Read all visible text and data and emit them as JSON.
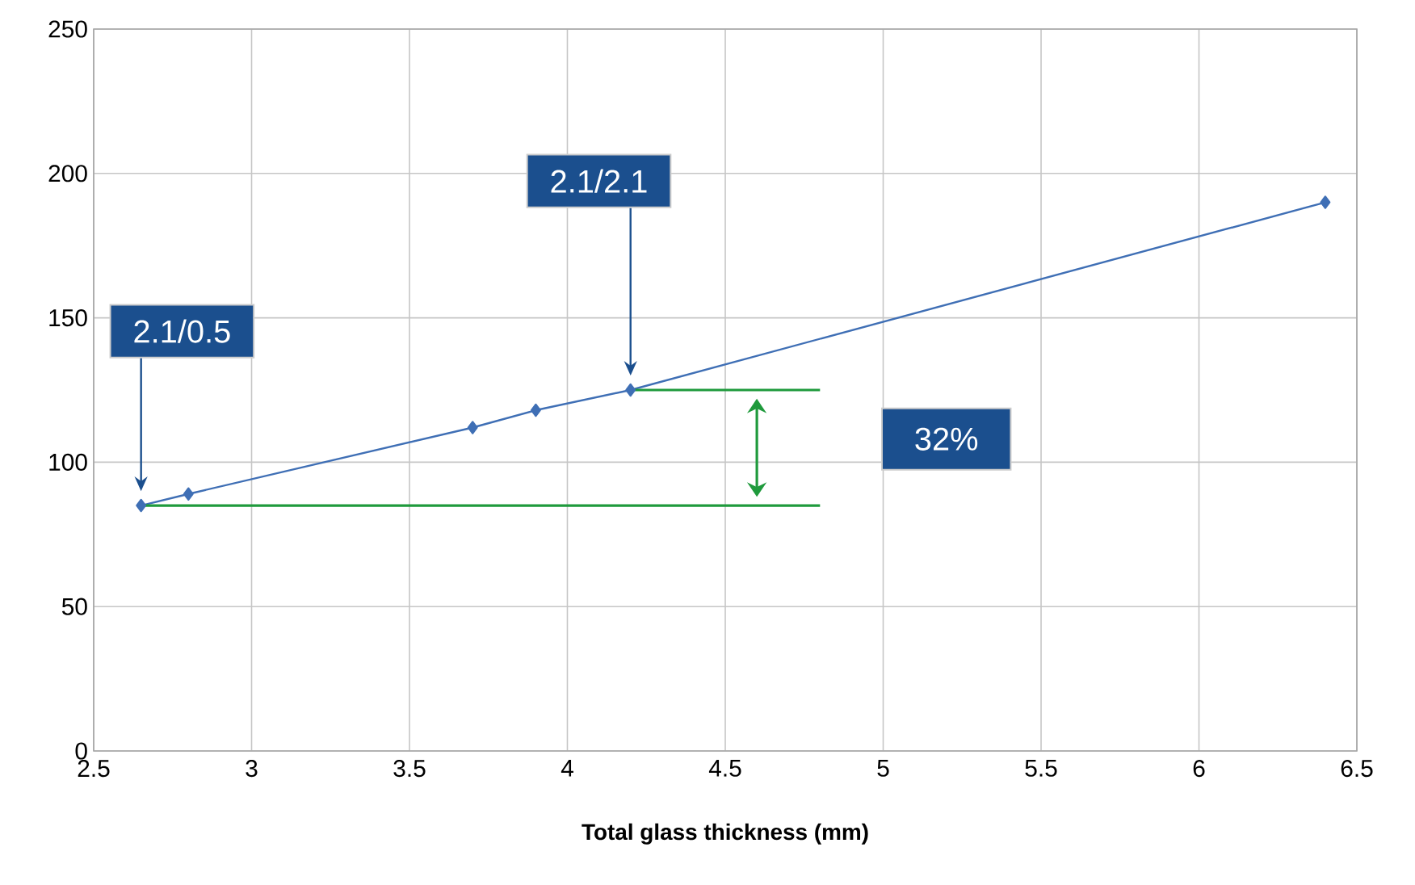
{
  "chart_data": {
    "type": "line",
    "xlabel": "Total glass thickness (mm)",
    "xlim": [
      2.5,
      6.5
    ],
    "xticks": [
      2.5,
      3,
      3.5,
      4,
      4.5,
      5,
      5.5,
      6,
      6.5
    ],
    "ylim": [
      0,
      250
    ],
    "yticks": [
      0,
      50,
      100,
      150,
      200,
      250
    ],
    "grid": true,
    "marker": "diamond",
    "line_style": "solid",
    "series": [
      {
        "color": "#3f6fb5",
        "x": [
          2.65,
          2.8,
          3.7,
          3.9,
          4.2,
          6.4
        ],
        "values": [
          85,
          89,
          112,
          118,
          125,
          190
        ]
      },
      {
        "color": "#1f9a3c",
        "marker": "none",
        "x": [
          2.65,
          4.8
        ],
        "values": [
          85,
          85
        ]
      },
      {
        "color": "#1f9a3c",
        "marker": "none",
        "x": [
          4.2,
          4.8
        ],
        "values": [
          125,
          125
        ]
      }
    ],
    "annotations": [
      "2.1/0.5",
      "2.1/2.1",
      "32%"
    ]
  }
}
